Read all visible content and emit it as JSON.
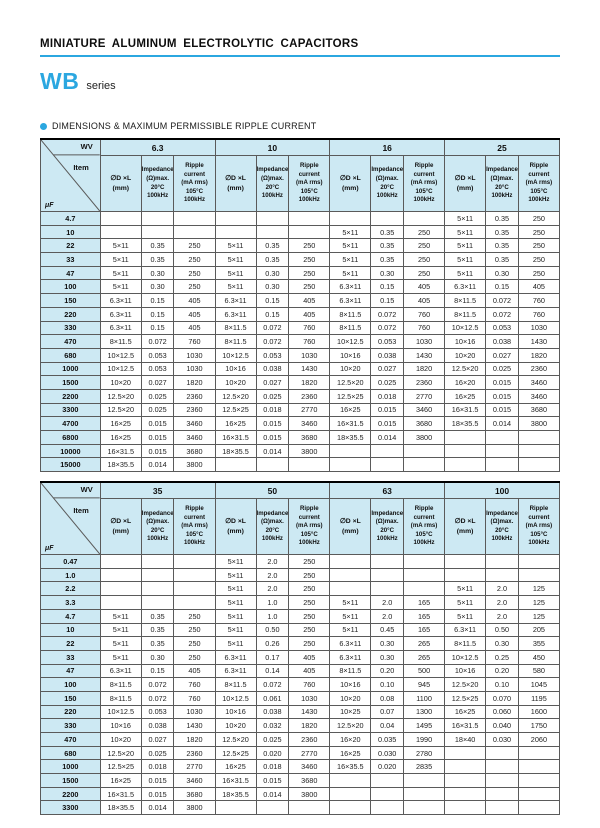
{
  "page": {
    "title": "MINIATURE ALUMINUM ELECTROLYTIC CAPACITORS",
    "series_name": "WB",
    "series_suffix": "series",
    "section_title": "DIMENSIONS & MAXIMUM PERMISSIBLE RIPPLE CURRENT"
  },
  "colors": {
    "accent": "#2ba7e0",
    "header_bg": "#cde9f3"
  },
  "table_header": {
    "wv": "WV",
    "item": "Item",
    "uf": "μF",
    "col_size": [
      "∅D ×L",
      "(mm)"
    ],
    "col_impedance": [
      "Impedance",
      "(Ω)max.",
      "20°C",
      "100kHz"
    ],
    "col_ripple": [
      "Ripple",
      "current",
      "(mA rms)",
      "105°C",
      "100kHz"
    ]
  },
  "tables": [
    {
      "voltages": [
        "6.3",
        "10",
        "16",
        "25"
      ],
      "rows": [
        {
          "item": "4.7",
          "groups": [
            [
              "",
              "",
              ""
            ],
            [
              "",
              "",
              ""
            ],
            [
              "",
              "",
              ""
            ],
            [
              "5×11",
              "0.35",
              "250"
            ]
          ]
        },
        {
          "item": "10",
          "groups": [
            [
              "",
              "",
              ""
            ],
            [
              "",
              "",
              ""
            ],
            [
              "5×11",
              "0.35",
              "250"
            ],
            [
              "5×11",
              "0.35",
              "250"
            ]
          ]
        },
        {
          "item": "22",
          "groups": [
            [
              "5×11",
              "0.35",
              "250"
            ],
            [
              "5×11",
              "0.35",
              "250"
            ],
            [
              "5×11",
              "0.35",
              "250"
            ],
            [
              "5×11",
              "0.35",
              "250"
            ]
          ]
        },
        {
          "item": "33",
          "groups": [
            [
              "5×11",
              "0.35",
              "250"
            ],
            [
              "5×11",
              "0.35",
              "250"
            ],
            [
              "5×11",
              "0.35",
              "250"
            ],
            [
              "5×11",
              "0.35",
              "250"
            ]
          ]
        },
        {
          "item": "47",
          "groups": [
            [
              "5×11",
              "0.30",
              "250"
            ],
            [
              "5×11",
              "0.30",
              "250"
            ],
            [
              "5×11",
              "0.30",
              "250"
            ],
            [
              "5×11",
              "0.30",
              "250"
            ]
          ]
        },
        {
          "item": "100",
          "groups": [
            [
              "5×11",
              "0.30",
              "250"
            ],
            [
              "5×11",
              "0.30",
              "250"
            ],
            [
              "6.3×11",
              "0.15",
              "405"
            ],
            [
              "6.3×11",
              "0.15",
              "405"
            ]
          ]
        },
        {
          "item": "150",
          "groups": [
            [
              "6.3×11",
              "0.15",
              "405"
            ],
            [
              "6.3×11",
              "0.15",
              "405"
            ],
            [
              "6.3×11",
              "0.15",
              "405"
            ],
            [
              "8×11.5",
              "0.072",
              "760"
            ]
          ]
        },
        {
          "item": "220",
          "groups": [
            [
              "6.3×11",
              "0.15",
              "405"
            ],
            [
              "6.3×11",
              "0.15",
              "405"
            ],
            [
              "8×11.5",
              "0.072",
              "760"
            ],
            [
              "8×11.5",
              "0.072",
              "760"
            ]
          ]
        },
        {
          "item": "330",
          "groups": [
            [
              "6.3×11",
              "0.15",
              "405"
            ],
            [
              "8×11.5",
              "0.072",
              "760"
            ],
            [
              "8×11.5",
              "0.072",
              "760"
            ],
            [
              "10×12.5",
              "0.053",
              "1030"
            ]
          ]
        },
        {
          "item": "470",
          "groups": [
            [
              "8×11.5",
              "0.072",
              "760"
            ],
            [
              "8×11.5",
              "0.072",
              "760"
            ],
            [
              "10×12.5",
              "0.053",
              "1030"
            ],
            [
              "10×16",
              "0.038",
              "1430"
            ]
          ]
        },
        {
          "item": "680",
          "groups": [
            [
              "10×12.5",
              "0.053",
              "1030"
            ],
            [
              "10×12.5",
              "0.053",
              "1030"
            ],
            [
              "10×16",
              "0.038",
              "1430"
            ],
            [
              "10×20",
              "0.027",
              "1820"
            ]
          ]
        },
        {
          "item": "1000",
          "groups": [
            [
              "10×12.5",
              "0.053",
              "1030"
            ],
            [
              "10×16",
              "0.038",
              "1430"
            ],
            [
              "10×20",
              "0.027",
              "1820"
            ],
            [
              "12.5×20",
              "0.025",
              "2360"
            ]
          ]
        },
        {
          "item": "1500",
          "groups": [
            [
              "10×20",
              "0.027",
              "1820"
            ],
            [
              "10×20",
              "0.027",
              "1820"
            ],
            [
              "12.5×20",
              "0.025",
              "2360"
            ],
            [
              "16×20",
              "0.015",
              "3460"
            ]
          ]
        },
        {
          "item": "2200",
          "groups": [
            [
              "12.5×20",
              "0.025",
              "2360"
            ],
            [
              "12.5×20",
              "0.025",
              "2360"
            ],
            [
              "12.5×25",
              "0.018",
              "2770"
            ],
            [
              "16×25",
              "0.015",
              "3460"
            ]
          ]
        },
        {
          "item": "3300",
          "groups": [
            [
              "12.5×20",
              "0.025",
              "2360"
            ],
            [
              "12.5×25",
              "0.018",
              "2770"
            ],
            [
              "16×25",
              "0.015",
              "3460"
            ],
            [
              "16×31.5",
              "0.015",
              "3680"
            ]
          ]
        },
        {
          "item": "4700",
          "groups": [
            [
              "16×25",
              "0.015",
              "3460"
            ],
            [
              "16×25",
              "0.015",
              "3460"
            ],
            [
              "16×31.5",
              "0.015",
              "3680"
            ],
            [
              "18×35.5",
              "0.014",
              "3800"
            ]
          ]
        },
        {
          "item": "6800",
          "groups": [
            [
              "16×25",
              "0.015",
              "3460"
            ],
            [
              "16×31.5",
              "0.015",
              "3680"
            ],
            [
              "18×35.5",
              "0.014",
              "3800"
            ],
            [
              "",
              "",
              ""
            ]
          ]
        },
        {
          "item": "10000",
          "groups": [
            [
              "16×31.5",
              "0.015",
              "3680"
            ],
            [
              "18×35.5",
              "0.014",
              "3800"
            ],
            [
              "",
              "",
              ""
            ],
            [
              "",
              "",
              ""
            ]
          ]
        },
        {
          "item": "15000",
          "groups": [
            [
              "18×35.5",
              "0.014",
              "3800"
            ],
            [
              "",
              "",
              ""
            ],
            [
              "",
              "",
              ""
            ],
            [
              "",
              "",
              ""
            ]
          ]
        }
      ]
    },
    {
      "voltages": [
        "35",
        "50",
        "63",
        "100"
      ],
      "rows": [
        {
          "item": "0.47",
          "groups": [
            [
              "",
              "",
              ""
            ],
            [
              "5×11",
              "2.0",
              "250"
            ],
            [
              "",
              "",
              ""
            ],
            [
              "",
              "",
              ""
            ]
          ]
        },
        {
          "item": "1.0",
          "groups": [
            [
              "",
              "",
              ""
            ],
            [
              "5×11",
              "2.0",
              "250"
            ],
            [
              "",
              "",
              ""
            ],
            [
              "",
              "",
              ""
            ]
          ]
        },
        {
          "item": "2.2",
          "groups": [
            [
              "",
              "",
              ""
            ],
            [
              "5×11",
              "2.0",
              "250"
            ],
            [
              "",
              "",
              ""
            ],
            [
              "5×11",
              "2.0",
              "125"
            ]
          ]
        },
        {
          "item": "3.3",
          "groups": [
            [
              "",
              "",
              ""
            ],
            [
              "5×11",
              "1.0",
              "250"
            ],
            [
              "5×11",
              "2.0",
              "165"
            ],
            [
              "5×11",
              "2.0",
              "125"
            ]
          ]
        },
        {
          "item": "4.7",
          "groups": [
            [
              "5×11",
              "0.35",
              "250"
            ],
            [
              "5×11",
              "1.0",
              "250"
            ],
            [
              "5×11",
              "2.0",
              "165"
            ],
            [
              "5×11",
              "2.0",
              "125"
            ]
          ]
        },
        {
          "item": "10",
          "groups": [
            [
              "5×11",
              "0.35",
              "250"
            ],
            [
              "5×11",
              "0.50",
              "250"
            ],
            [
              "5×11",
              "0.45",
              "165"
            ],
            [
              "6.3×11",
              "0.50",
              "205"
            ]
          ]
        },
        {
          "item": "22",
          "groups": [
            [
              "5×11",
              "0.35",
              "250"
            ],
            [
              "5×11",
              "0.26",
              "250"
            ],
            [
              "6.3×11",
              "0.30",
              "265"
            ],
            [
              "8×11.5",
              "0.30",
              "355"
            ]
          ]
        },
        {
          "item": "33",
          "groups": [
            [
              "5×11",
              "0.30",
              "250"
            ],
            [
              "6.3×11",
              "0.17",
              "405"
            ],
            [
              "6.3×11",
              "0.30",
              "265"
            ],
            [
              "10×12.5",
              "0.25",
              "450"
            ]
          ]
        },
        {
          "item": "47",
          "groups": [
            [
              "6.3×11",
              "0.15",
              "405"
            ],
            [
              "6.3×11",
              "0.14",
              "405"
            ],
            [
              "8×11.5",
              "0.20",
              "500"
            ],
            [
              "10×16",
              "0.20",
              "580"
            ]
          ]
        },
        {
          "item": "100",
          "groups": [
            [
              "8×11.5",
              "0.072",
              "760"
            ],
            [
              "8×11.5",
              "0.072",
              "760"
            ],
            [
              "10×16",
              "0.10",
              "945"
            ],
            [
              "12.5×20",
              "0.10",
              "1045"
            ]
          ]
        },
        {
          "item": "150",
          "groups": [
            [
              "8×11.5",
              "0.072",
              "760"
            ],
            [
              "10×12.5",
              "0.061",
              "1030"
            ],
            [
              "10×20",
              "0.08",
              "1100"
            ],
            [
              "12.5×25",
              "0.070",
              "1195"
            ]
          ]
        },
        {
          "item": "220",
          "groups": [
            [
              "10×12.5",
              "0.053",
              "1030"
            ],
            [
              "10×16",
              "0.038",
              "1430"
            ],
            [
              "10×25",
              "0.07",
              "1300"
            ],
            [
              "16×25",
              "0.060",
              "1600"
            ]
          ]
        },
        {
          "item": "330",
          "groups": [
            [
              "10×16",
              "0.038",
              "1430"
            ],
            [
              "10×20",
              "0.032",
              "1820"
            ],
            [
              "12.5×20",
              "0.04",
              "1495"
            ],
            [
              "16×31.5",
              "0.040",
              "1750"
            ]
          ]
        },
        {
          "item": "470",
          "groups": [
            [
              "10×20",
              "0.027",
              "1820"
            ],
            [
              "12.5×20",
              "0.025",
              "2360"
            ],
            [
              "16×20",
              "0.035",
              "1990"
            ],
            [
              "18×40",
              "0.030",
              "2060"
            ]
          ]
        },
        {
          "item": "680",
          "groups": [
            [
              "12.5×20",
              "0.025",
              "2360"
            ],
            [
              "12.5×25",
              "0.020",
              "2770"
            ],
            [
              "16×25",
              "0.030",
              "2780"
            ],
            [
              "",
              "",
              ""
            ]
          ]
        },
        {
          "item": "1000",
          "groups": [
            [
              "12.5×25",
              "0.018",
              "2770"
            ],
            [
              "16×25",
              "0.018",
              "3460"
            ],
            [
              "16×35.5",
              "0.020",
              "2835"
            ],
            [
              "",
              "",
              ""
            ]
          ]
        },
        {
          "item": "1500",
          "groups": [
            [
              "16×25",
              "0.015",
              "3460"
            ],
            [
              "16×31.5",
              "0.015",
              "3680"
            ],
            [
              "",
              "",
              ""
            ],
            [
              "",
              "",
              ""
            ]
          ]
        },
        {
          "item": "2200",
          "groups": [
            [
              "16×31.5",
              "0.015",
              "3680"
            ],
            [
              "18×35.5",
              "0.014",
              "3800"
            ],
            [
              "",
              "",
              ""
            ],
            [
              "",
              "",
              ""
            ]
          ]
        },
        {
          "item": "3300",
          "groups": [
            [
              "18×35.5",
              "0.014",
              "3800"
            ],
            [
              "",
              "",
              ""
            ],
            [
              "",
              "",
              ""
            ],
            [
              "",
              "",
              ""
            ]
          ]
        }
      ]
    }
  ]
}
